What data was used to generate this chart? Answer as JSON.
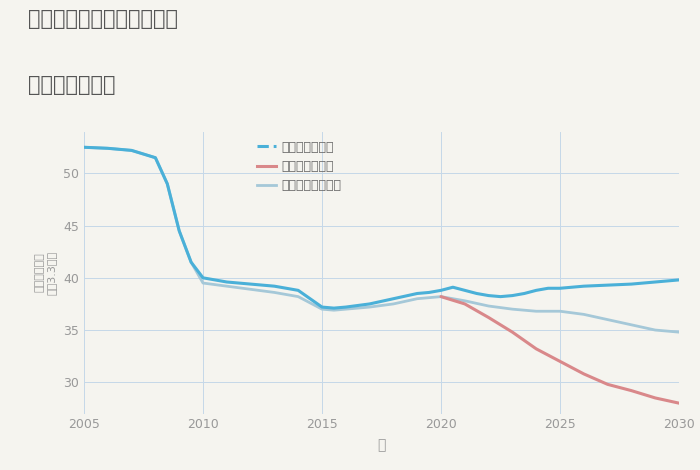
{
  "title_line1": "奈良県奈良市富雄泉ヶ丘の",
  "title_line2": "土地の価格推移",
  "xlabel": "年",
  "ylabel_top": "単価（万円）",
  "ylabel_bottom": "坪（3.3㎡）",
  "bg_color": "#f5f4ef",
  "plot_bg_color": "#f5f4ef",
  "grid_color": "#c5d8e8",
  "xlim": [
    2005,
    2030
  ],
  "ylim": [
    27,
    54
  ],
  "yticks": [
    30,
    35,
    40,
    45,
    50
  ],
  "xticks": [
    2005,
    2010,
    2015,
    2020,
    2025,
    2030
  ],
  "good_scenario": {
    "label": "グッドシナリオ",
    "color": "#4ab0d8",
    "linewidth": 2.2,
    "x": [
      2005,
      2006,
      2007,
      2008,
      2008.5,
      2009,
      2009.5,
      2010,
      2011,
      2012,
      2013,
      2014,
      2015,
      2015.5,
      2016,
      2017,
      2018,
      2019,
      2019.5,
      2020,
      2020.5,
      2021,
      2021.5,
      2022,
      2022.5,
      2023,
      2023.5,
      2024,
      2024.5,
      2025,
      2026,
      2027,
      2028,
      2029,
      2030
    ],
    "y": [
      52.5,
      52.4,
      52.2,
      51.5,
      49.0,
      44.5,
      41.5,
      40.0,
      39.6,
      39.4,
      39.2,
      38.8,
      37.2,
      37.1,
      37.2,
      37.5,
      38.0,
      38.5,
      38.6,
      38.8,
      39.1,
      38.8,
      38.5,
      38.3,
      38.2,
      38.3,
      38.5,
      38.8,
      39.0,
      39.0,
      39.2,
      39.3,
      39.4,
      39.6,
      39.8
    ]
  },
  "bad_scenario": {
    "label": "バッドシナリオ",
    "color": "#d9888a",
    "linewidth": 2.2,
    "x": [
      2020,
      2021,
      2022,
      2023,
      2024,
      2025,
      2026,
      2027,
      2028,
      2029,
      2030
    ],
    "y": [
      38.2,
      37.5,
      36.2,
      34.8,
      33.2,
      32.0,
      30.8,
      29.8,
      29.2,
      28.5,
      28.0
    ]
  },
  "normal_scenario": {
    "label": "ノーマルシナリオ",
    "color": "#a5c8d8",
    "linewidth": 2.0,
    "x": [
      2005,
      2006,
      2007,
      2008,
      2008.5,
      2009,
      2009.5,
      2010,
      2011,
      2012,
      2013,
      2014,
      2015,
      2015.5,
      2016,
      2017,
      2018,
      2019,
      2019.5,
      2020,
      2021,
      2022,
      2023,
      2024,
      2025,
      2026,
      2027,
      2028,
      2029,
      2030
    ],
    "y": [
      52.5,
      52.4,
      52.2,
      51.5,
      49.0,
      44.5,
      41.5,
      39.5,
      39.2,
      38.9,
      38.6,
      38.2,
      37.0,
      36.9,
      37.0,
      37.2,
      37.5,
      38.0,
      38.1,
      38.2,
      37.8,
      37.3,
      37.0,
      36.8,
      36.8,
      36.5,
      36.0,
      35.5,
      35.0,
      34.8
    ]
  }
}
